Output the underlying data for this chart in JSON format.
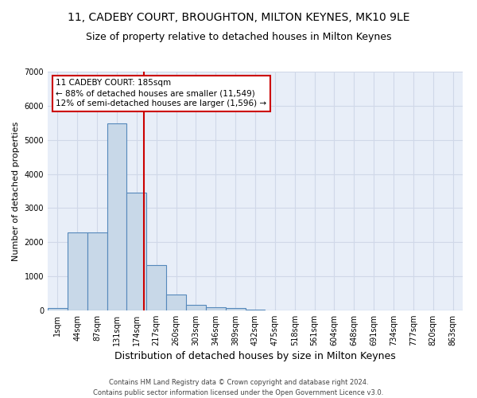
{
  "title": "11, CADEBY COURT, BROUGHTON, MILTON KEYNES, MK10 9LE",
  "subtitle": "Size of property relative to detached houses in Milton Keynes",
  "xlabel": "Distribution of detached houses by size in Milton Keynes",
  "ylabel": "Number of detached properties",
  "footer_line1": "Contains HM Land Registry data © Crown copyright and database right 2024.",
  "footer_line2": "Contains public sector information licensed under the Open Government Licence v3.0.",
  "bin_labels": [
    "1sqm",
    "44sqm",
    "87sqm",
    "131sqm",
    "174sqm",
    "217sqm",
    "260sqm",
    "303sqm",
    "346sqm",
    "389sqm",
    "432sqm",
    "475sqm",
    "518sqm",
    "561sqm",
    "604sqm",
    "648sqm",
    "691sqm",
    "734sqm",
    "777sqm",
    "820sqm",
    "863sqm"
  ],
  "bar_values": [
    75,
    2280,
    2280,
    5480,
    3450,
    1320,
    470,
    160,
    90,
    60,
    30,
    5,
    2,
    0,
    0,
    0,
    0,
    0,
    0,
    0,
    0
  ],
  "bar_color": "#c8d8e8",
  "bar_edge_color": "#5588bb",
  "annotation_text": "11 CADEBY COURT: 185sqm\n← 88% of detached houses are smaller (11,549)\n12% of semi-detached houses are larger (1,596) →",
  "annotation_box_color": "#ffffff",
  "annotation_box_edge_color": "#cc0000",
  "vline_x": 4.35,
  "vline_color": "#cc0000",
  "ylim": [
    0,
    7000
  ],
  "yticks": [
    0,
    1000,
    2000,
    3000,
    4000,
    5000,
    6000,
    7000
  ],
  "grid_color": "#d0d8e8",
  "background_color": "#e8eef8",
  "title_fontsize": 10,
  "subtitle_fontsize": 9,
  "ylabel_fontsize": 8,
  "xlabel_fontsize": 9,
  "tick_fontsize": 7,
  "footer_fontsize": 6,
  "annot_fontsize": 7.5
}
